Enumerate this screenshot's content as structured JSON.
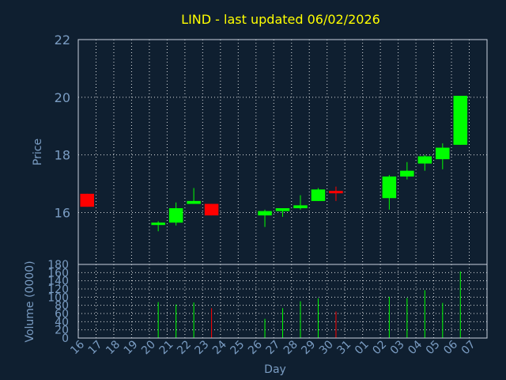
{
  "chart_data": [
    {
      "type": "candlestick",
      "title": "LIND - last updated 06/02/2026",
      "ylabel": "Price",
      "xlabel": "Day",
      "ylim": [
        14.2,
        22
      ],
      "yticks": [
        16,
        18,
        20,
        22
      ],
      "grid": true,
      "colors": {
        "up": "#00ff00",
        "down": "#ff0000",
        "background": "#0f1f30",
        "title": "#ffff00",
        "axis_text": "#7a9cc2"
      },
      "days": [
        "16",
        "17",
        "18",
        "19",
        "20",
        "21",
        "22",
        "23",
        "24",
        "25",
        "26",
        "27",
        "28",
        "29",
        "30",
        "31",
        "01",
        "02",
        "03",
        "04",
        "05",
        "06",
        "07"
      ],
      "candles": [
        {
          "day": "16",
          "open": 16.65,
          "high": 16.65,
          "low": 16.2,
          "close": 16.2
        },
        {
          "day": "20",
          "open": 15.6,
          "high": 15.7,
          "low": 15.35,
          "close": 15.65
        },
        {
          "day": "21",
          "open": 15.65,
          "high": 16.35,
          "low": 15.55,
          "close": 16.15
        },
        {
          "day": "22",
          "open": 16.3,
          "high": 16.85,
          "low": 16.3,
          "close": 16.4
        },
        {
          "day": "23",
          "open": 16.3,
          "high": 16.3,
          "low": 15.9,
          "close": 15.9
        },
        {
          "day": "26",
          "open": 15.9,
          "high": 16.1,
          "low": 15.5,
          "close": 16.05
        },
        {
          "day": "27",
          "open": 16.05,
          "high": 16.15,
          "low": 15.85,
          "close": 16.15
        },
        {
          "day": "28",
          "open": 16.15,
          "high": 16.6,
          "low": 16.1,
          "close": 16.25
        },
        {
          "day": "29",
          "open": 16.4,
          "high": 16.85,
          "low": 16.4,
          "close": 16.8
        },
        {
          "day": "30",
          "open": 16.75,
          "high": 16.9,
          "low": 16.4,
          "close": 16.7
        },
        {
          "day": "02",
          "open": 16.5,
          "high": 17.3,
          "low": 16.1,
          "close": 17.25
        },
        {
          "day": "03",
          "open": 17.25,
          "high": 17.75,
          "low": 17.15,
          "close": 17.45
        },
        {
          "day": "04",
          "open": 17.7,
          "high": 18.0,
          "low": 17.45,
          "close": 17.95
        },
        {
          "day": "05",
          "open": 17.85,
          "high": 18.4,
          "low": 17.5,
          "close": 18.25
        },
        {
          "day": "06",
          "open": 18.35,
          "high": 20.05,
          "low": 18.35,
          "close": 20.05
        }
      ]
    },
    {
      "type": "bar",
      "ylabel": "Volume (0000)",
      "ylim": [
        0,
        180
      ],
      "yticks": [
        0,
        20,
        40,
        60,
        80,
        100,
        120,
        140,
        160,
        180
      ],
      "grid": true,
      "volumes": [
        {
          "day": "20",
          "value": 88,
          "dir": "up"
        },
        {
          "day": "21",
          "value": 82,
          "dir": "up"
        },
        {
          "day": "22",
          "value": 87,
          "dir": "up"
        },
        {
          "day": "23",
          "value": 73,
          "dir": "down"
        },
        {
          "day": "26",
          "value": 47,
          "dir": "up"
        },
        {
          "day": "27",
          "value": 73,
          "dir": "up"
        },
        {
          "day": "28",
          "value": 90,
          "dir": "up"
        },
        {
          "day": "29",
          "value": 97,
          "dir": "up"
        },
        {
          "day": "30",
          "value": 65,
          "dir": "down"
        },
        {
          "day": "02",
          "value": 101,
          "dir": "up"
        },
        {
          "day": "03",
          "value": 98,
          "dir": "up"
        },
        {
          "day": "04",
          "value": 117,
          "dir": "up"
        },
        {
          "day": "05",
          "value": 86,
          "dir": "up"
        },
        {
          "day": "06",
          "value": 163,
          "dir": "up"
        }
      ]
    }
  ]
}
